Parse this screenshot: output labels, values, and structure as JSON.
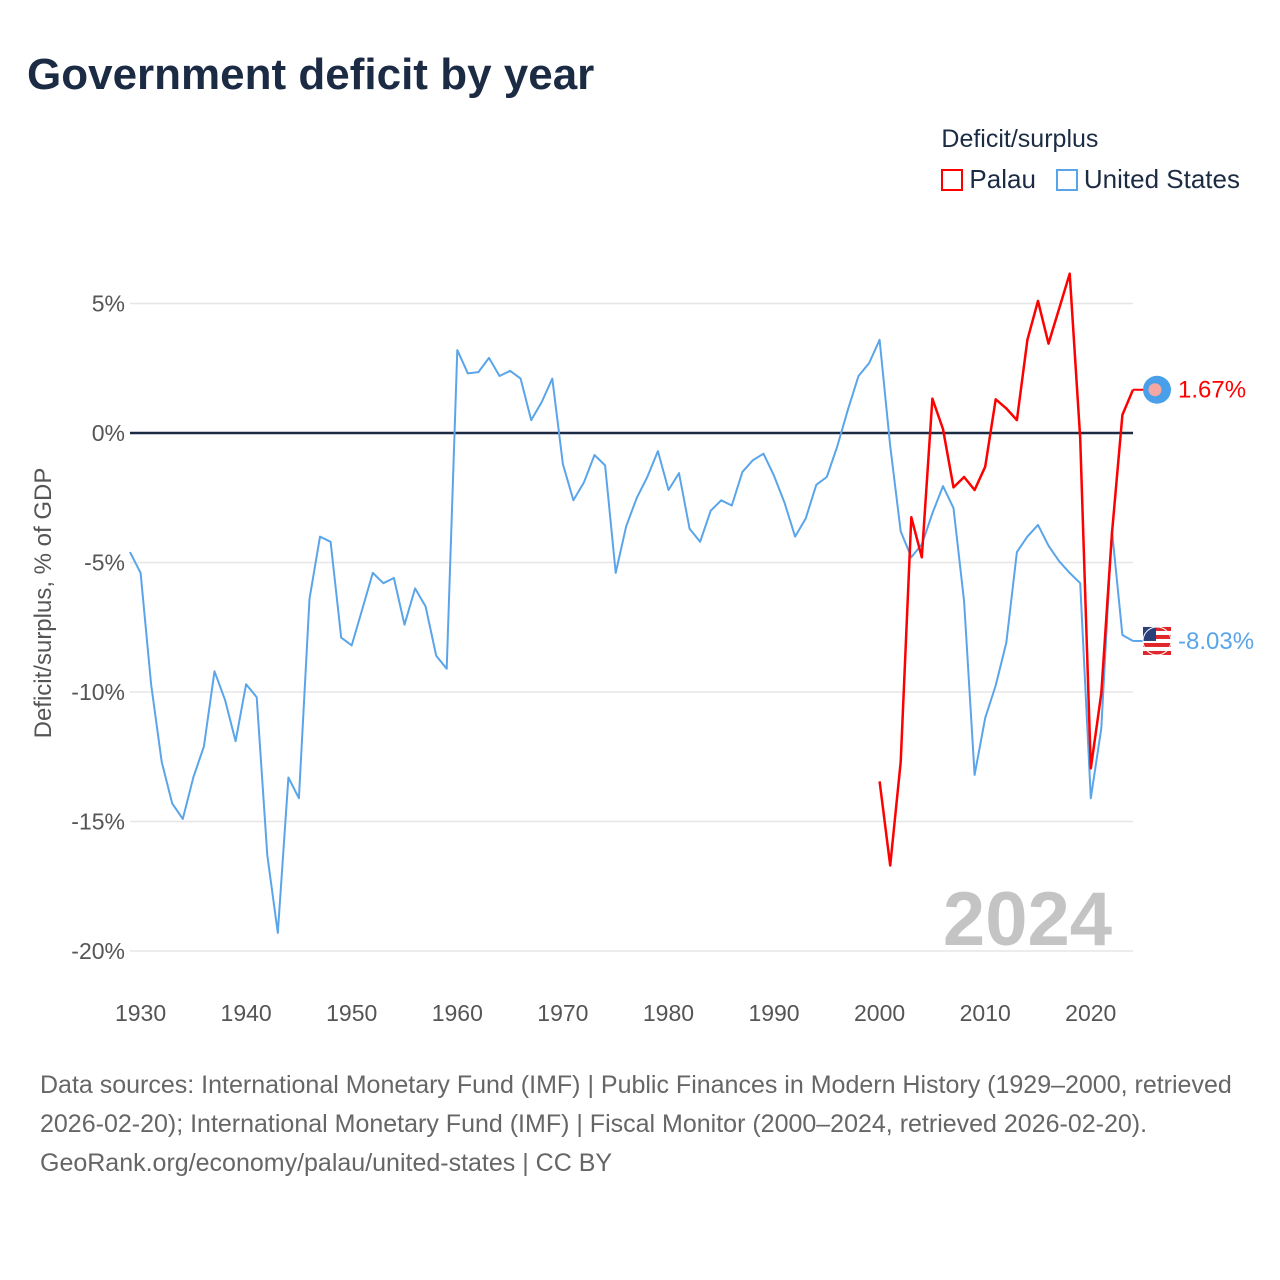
{
  "title": "Government deficit by year",
  "legend": {
    "title": "Deficit/surplus",
    "items": [
      {
        "name": "Palau",
        "color": "#ff0000"
      },
      {
        "name": "United States",
        "color": "#5aa5ea"
      }
    ]
  },
  "watermark_year": "2024",
  "chart_data": {
    "type": "line",
    "title": "Government deficit by year",
    "xlabel": "",
    "ylabel": "Deficit/surplus, % of GDP",
    "xlim": [
      1929,
      2024
    ],
    "ylim": [
      -20,
      6.5
    ],
    "x_ticks": [
      "1930",
      "1940",
      "1950",
      "1960",
      "1970",
      "1980",
      "1990",
      "2000",
      "2010",
      "2020"
    ],
    "y_ticks": [
      {
        "v": 5,
        "label": "5%"
      },
      {
        "v": 0,
        "label": "0%"
      },
      {
        "v": -5,
        "label": "-5%"
      },
      {
        "v": -10,
        "label": "-10%"
      },
      {
        "v": -15,
        "label": "-15%"
      },
      {
        "v": -20,
        "label": "-20%"
      }
    ],
    "legend_position": "top-right",
    "series": [
      {
        "name": "United States",
        "color": "#5aa5ea",
        "start_year": 1929,
        "end_label": "-8.03%",
        "values": [
          -4.6,
          -5.4,
          -9.7,
          -12.7,
          -14.3,
          -14.9,
          -13.3,
          -12.1,
          -9.2,
          -10.3,
          -11.9,
          -9.7,
          -10.2,
          -16.3,
          -19.3,
          -13.3,
          -14.1,
          -6.4,
          -4.0,
          -4.2,
          -7.9,
          -8.2,
          -6.8,
          -5.4,
          -5.8,
          -5.6,
          -7.4,
          -6.0,
          -6.7,
          -8.6,
          -9.1,
          3.2,
          2.3,
          2.35,
          2.9,
          2.2,
          2.4,
          2.1,
          0.5,
          1.2,
          2.1,
          -1.2,
          -2.6,
          -1.9,
          -0.85,
          -1.25,
          -5.4,
          -3.6,
          -2.5,
          -1.7,
          -0.7,
          -2.2,
          -1.55,
          -3.7,
          -4.2,
          -3.0,
          -2.6,
          -2.8,
          -1.5,
          -1.05,
          -0.8,
          -1.65,
          -2.7,
          -4.0,
          -3.3,
          -2.0,
          -1.7,
          -0.5,
          0.9,
          2.2,
          2.7,
          3.6,
          -0.5,
          -3.8,
          -4.8,
          -4.3,
          -3.1,
          -2.05,
          -2.9,
          -6.5,
          -13.2,
          -11.0,
          -9.75,
          -8.1,
          -4.6,
          -4.0,
          -3.55,
          -4.35,
          -4.95,
          -5.4,
          -5.8,
          -14.1,
          -11.4,
          -3.75,
          -7.8,
          -8.03
        ]
      },
      {
        "name": "Palau",
        "color": "#ff0000",
        "start_year": 2000,
        "end_label": "1.67%",
        "values": [
          -13.45,
          -16.7,
          -12.7,
          -3.25,
          -4.8,
          1.33,
          0.15,
          -2.1,
          -1.7,
          -2.2,
          -1.3,
          1.3,
          0.95,
          0.5,
          3.6,
          5.1,
          3.45,
          4.8,
          6.15,
          -0.2,
          -12.95,
          -10.05,
          -3.9,
          0.7,
          1.67
        ]
      }
    ]
  },
  "footer": {
    "sources": "Data sources: International Monetary Fund (IMF) | Public Finances in Modern History (1929–2000, retrieved 2026-02-20); International Monetary Fund (IMF) | Fiscal Monitor (2000–2024, retrieved 2026-02-20).",
    "credit": "GeoRank.org/economy/palau/united-states | CC BY"
  }
}
